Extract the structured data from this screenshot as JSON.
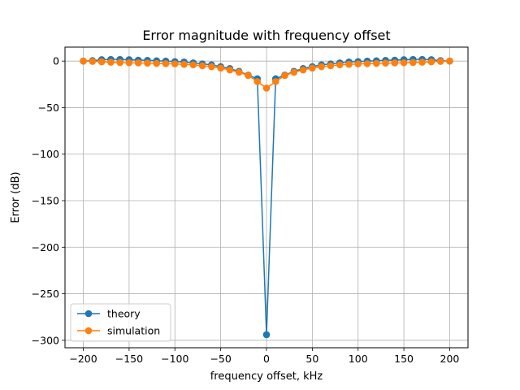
{
  "chart_data": {
    "type": "line",
    "title": "Error magnitude with frequency offset",
    "xlabel": "frequency offset, kHz",
    "ylabel": "Error (dB)",
    "xlim": [
      -220,
      220
    ],
    "ylim": [
      -308,
      15
    ],
    "xticks": [
      -200,
      -150,
      -100,
      -50,
      0,
      50,
      100,
      150,
      200
    ],
    "yticks": [
      0,
      -50,
      -100,
      -150,
      -200,
      -250,
      -300
    ],
    "grid": true,
    "legend_position": "lower-left",
    "x": [
      -200,
      -190,
      -180,
      -170,
      -160,
      -150,
      -140,
      -130,
      -120,
      -110,
      -100,
      -90,
      -80,
      -70,
      -60,
      -50,
      -40,
      -30,
      -20,
      -10,
      0,
      10,
      20,
      30,
      40,
      50,
      60,
      70,
      80,
      90,
      100,
      110,
      120,
      130,
      140,
      150,
      160,
      170,
      180,
      190,
      200
    ],
    "series": [
      {
        "name": "theory",
        "color": "#1f77b4",
        "values": [
          0,
          0.5,
          1.5,
          1.8,
          1.8,
          1.5,
          1,
          0.8,
          0.3,
          0,
          -0.5,
          -1,
          -2,
          -3,
          -4,
          -6,
          -8,
          -11,
          -15,
          -19,
          -294,
          -19,
          -15,
          -11,
          -8,
          -6,
          -4,
          -3,
          -2,
          -1,
          -0.5,
          0,
          0.3,
          0.8,
          1,
          1.5,
          1.8,
          1.8,
          1.5,
          0.5,
          0
        ]
      },
      {
        "name": "simulation",
        "color": "#ff7f0e",
        "values": [
          0,
          -0.3,
          -0.8,
          -1.2,
          -1.5,
          -1.8,
          -2,
          -2.2,
          -2.5,
          -2.8,
          -3,
          -3.5,
          -4,
          -5,
          -6,
          -7.5,
          -9.5,
          -12,
          -15.5,
          -22,
          -29,
          -22,
          -15.5,
          -12,
          -9.5,
          -7.5,
          -6,
          -5,
          -4,
          -3.5,
          -3,
          -2.8,
          -2.5,
          -2.2,
          -2,
          -1.8,
          -1.5,
          -1.2,
          -0.8,
          -0.3,
          0
        ]
      }
    ]
  }
}
